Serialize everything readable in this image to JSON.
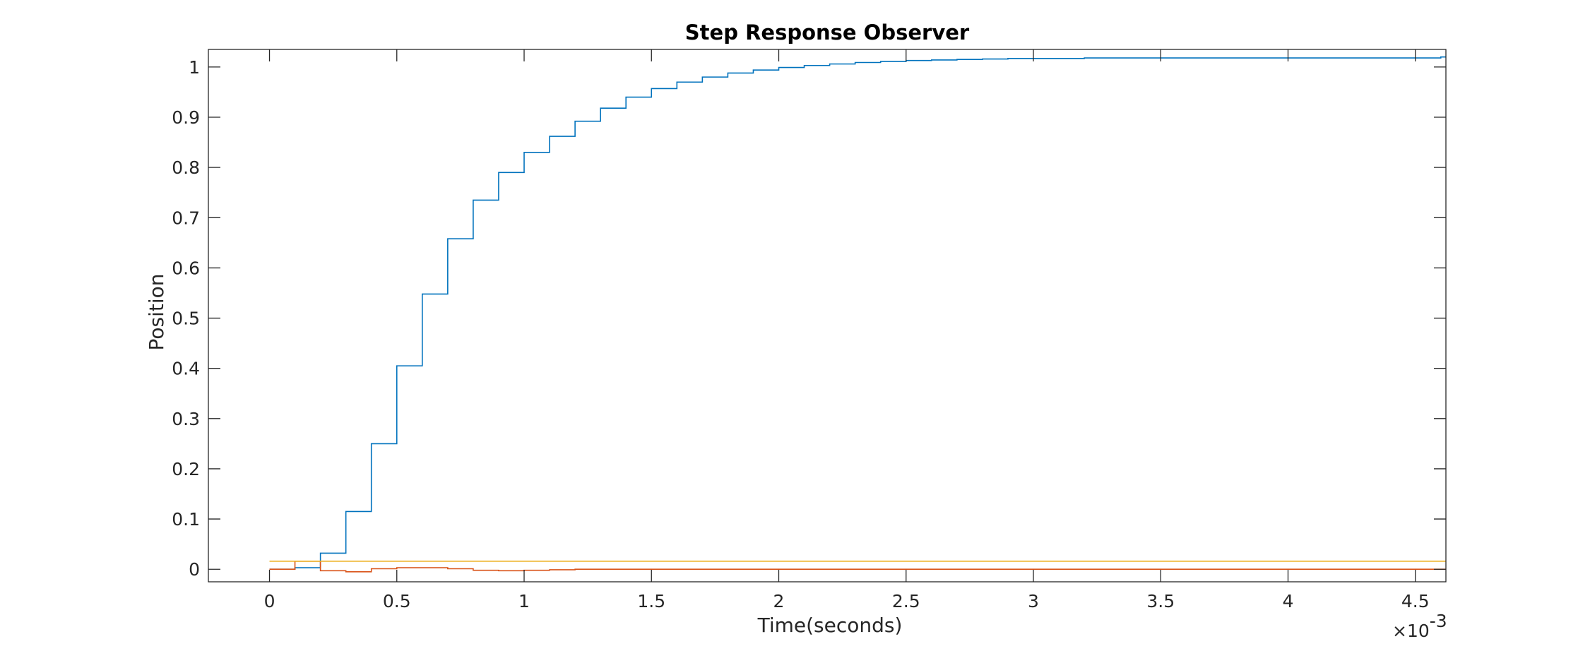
{
  "chart_data": {
    "type": "line",
    "title": "Step Response Observer",
    "xlabel": "Time(seconds)",
    "ylabel": "Position",
    "x_exponent_label": "×10",
    "x_exponent_power": "-3",
    "xlim": [
      -0.00024,
      0.00462
    ],
    "ylim": [
      -0.025,
      1.035
    ],
    "grid": false,
    "legend": "none",
    "x_ticks": [
      0,
      0.0005,
      0.001,
      0.0015,
      0.002,
      0.0025,
      0.003,
      0.0035,
      0.004,
      0.0045
    ],
    "x_tick_labels": [
      "0",
      "0.5",
      "1",
      "1.5",
      "2",
      "2.5",
      "3",
      "3.5",
      "4",
      "4.5"
    ],
    "y_ticks": [
      0,
      0.1,
      0.2,
      0.3,
      0.4,
      0.5,
      0.6,
      0.7,
      0.8,
      0.9,
      1
    ],
    "y_tick_labels": [
      "0",
      "0.1",
      "0.2",
      "0.3",
      "0.4",
      "0.5",
      "0.6",
      "0.7",
      "0.8",
      "0.9",
      "1"
    ],
    "step_interval": 0.0001,
    "x_start": 0,
    "x_end": 0.00462,
    "series": [
      {
        "color": "#0072BD",
        "values": [
          0,
          0.003,
          0.032,
          0.115,
          0.25,
          0.405,
          0.548,
          0.658,
          0.735,
          0.79,
          0.83,
          0.862,
          0.892,
          0.918,
          0.94,
          0.957,
          0.97,
          0.98,
          0.988,
          0.994,
          0.999,
          1.003,
          1.006,
          1.009,
          1.011,
          1.013,
          1.014,
          1.015,
          1.016,
          1.017,
          1.017,
          1.017,
          1.018,
          1.018,
          1.018,
          1.018,
          1.018,
          1.018,
          1.018,
          1.018,
          1.018,
          1.018,
          1.018,
          1.018,
          1.018,
          1.018,
          1.02
        ]
      },
      {
        "color": "#D95319",
        "values": [
          0,
          0.016,
          -0.003,
          -0.005,
          0.001,
          0.003,
          0.003,
          0.001,
          -0.002,
          -0.003,
          -0.002,
          -0.001,
          0,
          0,
          0,
          0,
          0,
          0,
          0,
          0,
          0,
          0,
          0,
          0,
          0,
          0,
          0,
          0,
          0,
          0,
          0,
          0,
          0,
          0,
          0,
          0,
          0,
          0,
          0,
          0,
          0,
          0,
          0,
          0,
          0,
          0,
          0
        ]
      },
      {
        "color": "#EDB120",
        "values": [
          0.016,
          0.016,
          0.016,
          0.016,
          0.016,
          0.016,
          0.016,
          0.016,
          0.016,
          0.016,
          0.016,
          0.016,
          0.016,
          0.016,
          0.016,
          0.016,
          0.016,
          0.016,
          0.016,
          0.016,
          0.016,
          0.016,
          0.016,
          0.016,
          0.016,
          0.016,
          0.016,
          0.016,
          0.016,
          0.016,
          0.016,
          0.016,
          0.016,
          0.016,
          0.016,
          0.016,
          0.016,
          0.016,
          0.016,
          0.016,
          0.016,
          0.016,
          0.016,
          0.016,
          0.016,
          0.016,
          0.016
        ]
      }
    ]
  }
}
